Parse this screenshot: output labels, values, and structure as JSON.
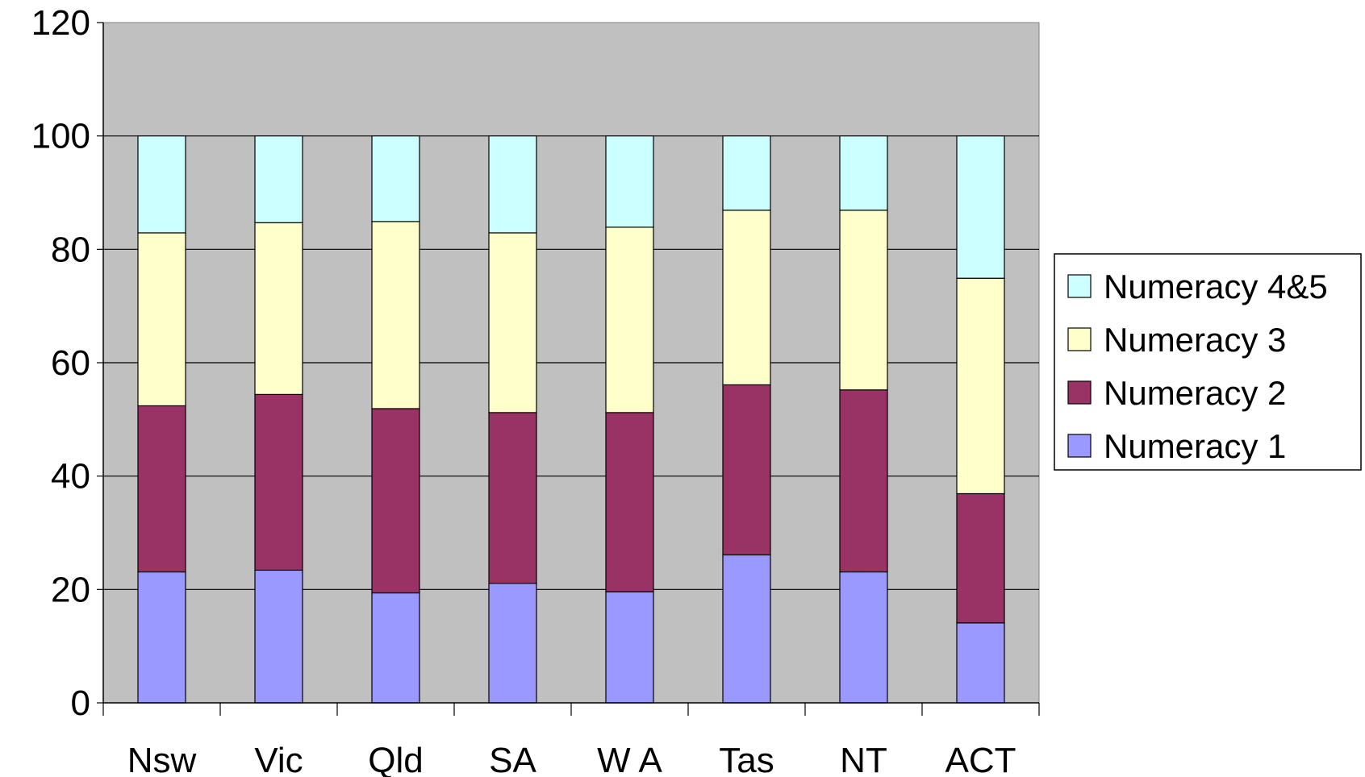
{
  "chart_data": {
    "type": "bar",
    "stacked": true,
    "categories": [
      "Nsw",
      "Vic",
      "Qld",
      "SA",
      "W A",
      "Tas",
      "NT",
      "ACT"
    ],
    "series": [
      {
        "name": "Numeracy 1",
        "color": "#9999ff",
        "values": [
          23.1,
          23.4,
          19.4,
          21.1,
          19.6,
          26.1,
          23.1,
          14.1
        ]
      },
      {
        "name": "Numeracy 2",
        "color": "#993366",
        "values": [
          29.3,
          31.0,
          32.5,
          30.1,
          31.6,
          30.0,
          32.1,
          22.8
        ]
      },
      {
        "name": "Numeracy 3",
        "color": "#ffffcc",
        "values": [
          30.5,
          30.3,
          33.0,
          31.7,
          32.7,
          30.8,
          31.7,
          38.0
        ]
      },
      {
        "name": "Numeracy 4&5",
        "color": "#ccffff",
        "values": [
          17.1,
          15.3,
          15.1,
          17.1,
          16.1,
          13.1,
          13.1,
          25.1
        ]
      }
    ],
    "ylim": [
      0,
      120
    ],
    "yticks": [
      0,
      20,
      40,
      60,
      80,
      100,
      120
    ],
    "title": "",
    "xlabel": "",
    "ylabel": "",
    "grid": true,
    "legend_position": "right",
    "plot_background": "#c0c0c0"
  }
}
